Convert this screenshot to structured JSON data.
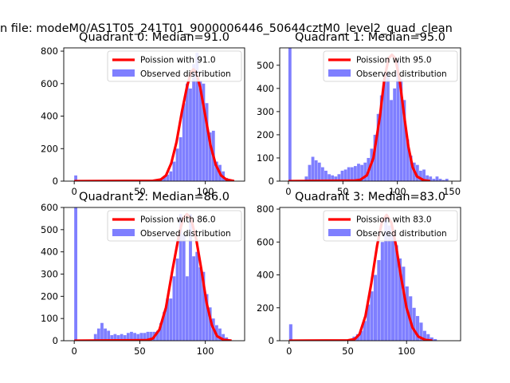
{
  "suptitle": "n file: modeM0/AS1T05_241T01_9000006446_50644cztM0_level2_quad_clean",
  "chart_data": [
    {
      "type": "bar",
      "title": "Quadrant 0: Median=91.0",
      "median": 91.0,
      "xlim": [
        -8,
        130
      ],
      "ylim": [
        0,
        820
      ],
      "xticks": [
        0,
        50,
        100
      ],
      "yticks": [
        0,
        200,
        400,
        600,
        800
      ],
      "legend": {
        "position": "top-right",
        "line_label": "Poission with 91.0",
        "bar_label": "Observed distribution"
      },
      "colors": {
        "line": "#ff0000",
        "bars": "#7f7fff"
      },
      "bin_width": 2.5,
      "bars": [
        [
          0,
          35
        ],
        [
          65,
          15
        ],
        [
          67.5,
          30
        ],
        [
          70,
          40
        ],
        [
          72.5,
          60
        ],
        [
          75,
          120
        ],
        [
          77.5,
          200
        ],
        [
          80,
          270
        ],
        [
          82.5,
          480
        ],
        [
          85,
          600
        ],
        [
          87.5,
          570
        ],
        [
          90,
          720
        ],
        [
          92.5,
          790
        ],
        [
          95,
          620
        ],
        [
          97.5,
          600
        ],
        [
          100,
          480
        ],
        [
          102.5,
          300
        ],
        [
          105,
          310
        ],
        [
          107.5,
          120
        ],
        [
          110,
          100
        ],
        [
          112.5,
          60
        ],
        [
          115,
          20
        ]
      ],
      "curve": [
        [
          0,
          0
        ],
        [
          60,
          2
        ],
        [
          66,
          10
        ],
        [
          70,
          35
        ],
        [
          74,
          110
        ],
        [
          78,
          240
        ],
        [
          82,
          420
        ],
        [
          86,
          580
        ],
        [
          89,
          670
        ],
        [
          91,
          688
        ],
        [
          93,
          670
        ],
        [
          96,
          580
        ],
        [
          100,
          400
        ],
        [
          104,
          220
        ],
        [
          108,
          100
        ],
        [
          112,
          35
        ],
        [
          116,
          10
        ],
        [
          122,
          0
        ]
      ]
    },
    {
      "type": "bar",
      "title": "Quadrant 1: Median=95.0",
      "median": 95.0,
      "xlim": [
        -8,
        158
      ],
      "ylim": [
        0,
        575
      ],
      "xticks": [
        0,
        50,
        100,
        150
      ],
      "yticks": [
        0,
        100,
        200,
        300,
        400,
        500
      ],
      "legend": {
        "position": "top-right",
        "line_label": "Poission with 95.0",
        "bar_label": "Observed distribution"
      },
      "colors": {
        "line": "#ff0000",
        "bars": "#7f7fff"
      },
      "bin_width": 3,
      "bars": [
        [
          0,
          575
        ],
        [
          15,
          20
        ],
        [
          18,
          70
        ],
        [
          21,
          105
        ],
        [
          24,
          90
        ],
        [
          27,
          80
        ],
        [
          30,
          60
        ],
        [
          33,
          45
        ],
        [
          36,
          30
        ],
        [
          39,
          25
        ],
        [
          42,
          20
        ],
        [
          45,
          30
        ],
        [
          48,
          45
        ],
        [
          51,
          50
        ],
        [
          54,
          60
        ],
        [
          57,
          60
        ],
        [
          60,
          65
        ],
        [
          63,
          75
        ],
        [
          66,
          70
        ],
        [
          69,
          80
        ],
        [
          72,
          100
        ],
        [
          75,
          140
        ],
        [
          78,
          200
        ],
        [
          81,
          290
        ],
        [
          84,
          370
        ],
        [
          87,
          470
        ],
        [
          90,
          470
        ],
        [
          93,
          350
        ],
        [
          96,
          400
        ],
        [
          99,
          520
        ],
        [
          102,
          440
        ],
        [
          105,
          350
        ],
        [
          108,
          180
        ],
        [
          111,
          110
        ],
        [
          114,
          80
        ],
        [
          117,
          70
        ],
        [
          120,
          45
        ],
        [
          123,
          50
        ],
        [
          126,
          25
        ],
        [
          129,
          20
        ],
        [
          132,
          10
        ],
        [
          135,
          20
        ],
        [
          138,
          10
        ],
        [
          141,
          5
        ],
        [
          144,
          10
        ]
      ],
      "curve": [
        [
          0,
          0
        ],
        [
          60,
          2
        ],
        [
          66,
          6
        ],
        [
          72,
          25
        ],
        [
          78,
          100
        ],
        [
          84,
          280
        ],
        [
          88,
          440
        ],
        [
          92,
          530
        ],
        [
          95,
          545
        ],
        [
          98,
          530
        ],
        [
          102,
          440
        ],
        [
          106,
          290
        ],
        [
          110,
          150
        ],
        [
          114,
          60
        ],
        [
          118,
          20
        ],
        [
          124,
          4
        ],
        [
          130,
          0
        ]
      ]
    },
    {
      "type": "bar",
      "title": "Quadrant 2: Median=86.0",
      "median": 86.0,
      "xlim": [
        -8,
        130
      ],
      "ylim": [
        0,
        600
      ],
      "xticks": [
        0,
        50,
        100
      ],
      "yticks": [
        0,
        100,
        200,
        300,
        400,
        500,
        600
      ],
      "legend": {
        "position": "top-right",
        "line_label": "Poission with 86.0",
        "bar_label": "Observed distribution"
      },
      "colors": {
        "line": "#ff0000",
        "bars": "#7f7fff"
      },
      "bin_width": 2.5,
      "bars": [
        [
          0,
          600
        ],
        [
          15,
          30
        ],
        [
          17.5,
          55
        ],
        [
          20,
          80
        ],
        [
          22.5,
          55
        ],
        [
          25,
          45
        ],
        [
          27.5,
          25
        ],
        [
          30,
          30
        ],
        [
          32.5,
          25
        ],
        [
          35,
          30
        ],
        [
          37.5,
          25
        ],
        [
          40,
          35
        ],
        [
          42.5,
          40
        ],
        [
          45,
          35
        ],
        [
          47.5,
          30
        ],
        [
          50,
          35
        ],
        [
          52.5,
          35
        ],
        [
          55,
          40
        ],
        [
          57.5,
          40
        ],
        [
          60,
          40
        ],
        [
          62.5,
          45
        ],
        [
          65,
          80
        ],
        [
          67.5,
          130
        ],
        [
          70,
          190
        ],
        [
          72.5,
          190
        ],
        [
          75,
          290
        ],
        [
          77.5,
          370
        ],
        [
          80,
          570
        ],
        [
          82.5,
          480
        ],
        [
          85,
          290
        ],
        [
          87.5,
          570
        ],
        [
          90,
          380
        ],
        [
          92.5,
          400
        ],
        [
          95,
          330
        ],
        [
          97.5,
          310
        ],
        [
          100,
          210
        ],
        [
          102.5,
          150
        ],
        [
          105,
          100
        ],
        [
          107.5,
          70
        ],
        [
          110,
          55
        ],
        [
          112.5,
          30
        ],
        [
          115,
          15
        ]
      ],
      "curve": [
        [
          0,
          0
        ],
        [
          55,
          2
        ],
        [
          60,
          10
        ],
        [
          65,
          50
        ],
        [
          70,
          150
        ],
        [
          75,
          320
        ],
        [
          80,
          480
        ],
        [
          83,
          550
        ],
        [
          86,
          570
        ],
        [
          89,
          550
        ],
        [
          93,
          460
        ],
        [
          97,
          320
        ],
        [
          101,
          170
        ],
        [
          105,
          70
        ],
        [
          109,
          20
        ],
        [
          114,
          4
        ],
        [
          120,
          0
        ]
      ]
    },
    {
      "type": "bar",
      "title": "Quadrant 3: Median=83.0",
      "median": 83.0,
      "xlim": [
        -8,
        146
      ],
      "ylim": [
        0,
        810
      ],
      "xticks": [
        0,
        50,
        100
      ],
      "yticks": [
        0,
        200,
        400,
        600,
        800
      ],
      "legend": {
        "position": "top-right",
        "line_label": "Poission with 83.0",
        "bar_label": "Observed distribution"
      },
      "colors": {
        "line": "#ff0000",
        "bars": "#7f7fff"
      },
      "bin_width": 3,
      "bars": [
        [
          0,
          100
        ],
        [
          51,
          10
        ],
        [
          54,
          25
        ],
        [
          57,
          40
        ],
        [
          60,
          60
        ],
        [
          63,
          120
        ],
        [
          66,
          220
        ],
        [
          69,
          300
        ],
        [
          72,
          400
        ],
        [
          75,
          490
        ],
        [
          78,
          600
        ],
        [
          81,
          750
        ],
        [
          84,
          700
        ],
        [
          87,
          640
        ],
        [
          90,
          580
        ],
        [
          93,
          500
        ],
        [
          96,
          450
        ],
        [
          99,
          330
        ],
        [
          102,
          270
        ],
        [
          105,
          200
        ],
        [
          108,
          150
        ],
        [
          111,
          110
        ],
        [
          114,
          60
        ],
        [
          117,
          40
        ],
        [
          120,
          20
        ],
        [
          123,
          10
        ]
      ],
      "curve": [
        [
          0,
          0
        ],
        [
          50,
          2
        ],
        [
          56,
          10
        ],
        [
          60,
          40
        ],
        [
          65,
          150
        ],
        [
          70,
          350
        ],
        [
          75,
          580
        ],
        [
          79,
          720
        ],
        [
          83,
          765
        ],
        [
          87,
          720
        ],
        [
          91,
          580
        ],
        [
          95,
          400
        ],
        [
          100,
          200
        ],
        [
          105,
          80
        ],
        [
          110,
          25
        ],
        [
          116,
          5
        ],
        [
          122,
          0
        ]
      ]
    }
  ]
}
